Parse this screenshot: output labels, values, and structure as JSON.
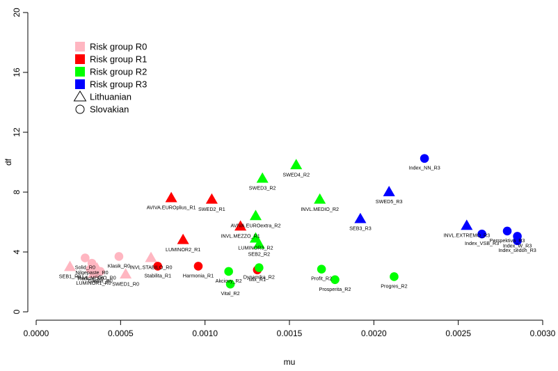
{
  "chart_data": {
    "type": "scatter",
    "xlabel": "mu",
    "ylabel": "df",
    "xlim": [
      0.0,
      0.003
    ],
    "ylim": [
      0,
      20
    ],
    "x_ticks": [
      "0.0000",
      "0.0005",
      "0.0010",
      "0.0015",
      "0.0020",
      "0.0025",
      "0.0030"
    ],
    "x_tick_values": [
      0.0,
      0.0005,
      0.001,
      0.0015,
      0.002,
      0.0025,
      0.003
    ],
    "y_ticks": [
      "0",
      "4",
      "8",
      "12",
      "16",
      "20"
    ],
    "y_tick_values": [
      0,
      4,
      8,
      12,
      16,
      20
    ],
    "grid": false,
    "legend_position": "top-left",
    "legend": [
      {
        "label": "Risk group R0",
        "symbol": "square",
        "color": "#ffb6c1"
      },
      {
        "label": "Risk group R1",
        "symbol": "square",
        "color": "#ff0000"
      },
      {
        "label": "Risk group R2",
        "symbol": "square",
        "color": "#00ff00"
      },
      {
        "label": "Risk group R3",
        "symbol": "square",
        "color": "#0000ff"
      },
      {
        "label": "Lithuanian",
        "symbol": "triangle-open",
        "color": "#000000"
      },
      {
        "label": "Slovakian",
        "symbol": "circle-open",
        "color": "#000000"
      }
    ],
    "group_colors": {
      "R0": "#ffb6c1",
      "R1": "#ff0000",
      "R2": "#00ff00",
      "R3": "#0000ff"
    },
    "points": [
      {
        "label": "SEB1_R0",
        "x": 0.0002,
        "y": 3.0,
        "group": "R0",
        "shape": "triangle",
        "label_side": "below"
      },
      {
        "label": "Tradicia_R0",
        "x": 0.00032,
        "y": 2.85,
        "group": "R0",
        "shape": "circle",
        "label_side": "below"
      },
      {
        "label": "Solid_R0",
        "x": 0.00029,
        "y": 3.6,
        "group": "R0",
        "shape": "circle",
        "label_side": "below"
      },
      {
        "label": "Nilgepaste_R0",
        "x": 0.00033,
        "y": 3.25,
        "group": "R0",
        "shape": "circle",
        "label_side": "below"
      },
      {
        "label": "INVL.MEDIO_R0",
        "x": 0.00036,
        "y": 2.9,
        "group": "R0",
        "shape": "triangle",
        "label_side": "below"
      },
      {
        "label": "LUMINOR1_R0",
        "x": 0.00034,
        "y": 2.55,
        "group": "R0",
        "shape": "triangle",
        "label_side": "below"
      },
      {
        "label": "Garant_R0",
        "x": 0.00038,
        "y": 2.7,
        "group": "R0",
        "shape": "circle",
        "label_side": "below"
      },
      {
        "label": "Klasik_R0",
        "x": 0.00049,
        "y": 3.7,
        "group": "R0",
        "shape": "circle",
        "label_side": "below"
      },
      {
        "label": "SWED1_R0",
        "x": 0.00053,
        "y": 2.5,
        "group": "R0",
        "shape": "triangle",
        "label_side": "below"
      },
      {
        "label": "INVL.STABILO_R0",
        "x": 0.00068,
        "y": 3.6,
        "group": "R0",
        "shape": "triangle",
        "label_side": "below"
      },
      {
        "label": "Stabilita_R1",
        "x": 0.00072,
        "y": 3.05,
        "group": "R1",
        "shape": "circle",
        "label_side": "below"
      },
      {
        "label": "AVIVA.EUROplius_R1",
        "x": 0.0008,
        "y": 7.6,
        "group": "R1",
        "shape": "triangle",
        "label_side": "below"
      },
      {
        "label": "LUMINOR2_R1",
        "x": 0.00087,
        "y": 4.8,
        "group": "R1",
        "shape": "triangle",
        "label_side": "below"
      },
      {
        "label": "Harmonia_R1",
        "x": 0.00096,
        "y": 3.05,
        "group": "R1",
        "shape": "circle",
        "label_side": "below"
      },
      {
        "label": "SWED2_R1",
        "x": 0.00104,
        "y": 7.5,
        "group": "R1",
        "shape": "triangle",
        "label_side": "below"
      },
      {
        "label": "INVL.MEZZO_R1",
        "x": 0.00121,
        "y": 5.7,
        "group": "R1",
        "shape": "triangle",
        "label_side": "below"
      },
      {
        "label": "Mix_R1",
        "x": 0.00131,
        "y": 2.8,
        "group": "R1",
        "shape": "circle",
        "label_side": "below"
      },
      {
        "label": "Akciovy_R2",
        "x": 0.00114,
        "y": 2.7,
        "group": "R2",
        "shape": "circle",
        "label_side": "below"
      },
      {
        "label": "Vital_R2",
        "x": 0.00115,
        "y": 1.85,
        "group": "R2",
        "shape": "circle",
        "label_side": "below"
      },
      {
        "label": "Dynamika_R2",
        "x": 0.00132,
        "y": 2.95,
        "group": "R2",
        "shape": "circle",
        "label_side": "below"
      },
      {
        "label": "AVIVA.EUROextra_R2",
        "x": 0.0013,
        "y": 6.4,
        "group": "R2",
        "shape": "triangle",
        "label_side": "below"
      },
      {
        "label": "LUMINOR3_R2",
        "x": 0.0013,
        "y": 4.9,
        "group": "R2",
        "shape": "triangle",
        "label_side": "below"
      },
      {
        "label": "SEB2_R2",
        "x": 0.00132,
        "y": 4.5,
        "group": "R2",
        "shape": "triangle",
        "label_side": "below"
      },
      {
        "label": "SWED3_R2",
        "x": 0.00134,
        "y": 8.9,
        "group": "R2",
        "shape": "triangle",
        "label_side": "below"
      },
      {
        "label": "SWED4_R2",
        "x": 0.00154,
        "y": 9.8,
        "group": "R2",
        "shape": "triangle",
        "label_side": "below"
      },
      {
        "label": "INVL.MEDIO_R2",
        "x": 0.00168,
        "y": 7.5,
        "group": "R2",
        "shape": "triangle",
        "label_side": "below"
      },
      {
        "label": "Profit_R2",
        "x": 0.00169,
        "y": 2.85,
        "group": "R2",
        "shape": "circle",
        "label_side": "below"
      },
      {
        "label": "Prosperita_R2",
        "x": 0.00177,
        "y": 2.15,
        "group": "R2",
        "shape": "circle",
        "label_side": "below"
      },
      {
        "label": "Progres_R2",
        "x": 0.00212,
        "y": 2.35,
        "group": "R2",
        "shape": "circle",
        "label_side": "below"
      },
      {
        "label": "SEB3_R3",
        "x": 0.00192,
        "y": 6.2,
        "group": "R3",
        "shape": "triangle",
        "label_side": "below"
      },
      {
        "label": "SWED5_R3",
        "x": 0.00209,
        "y": 8.0,
        "group": "R3",
        "shape": "triangle",
        "label_side": "below"
      },
      {
        "label": "Index_NN_R3",
        "x": 0.0023,
        "y": 10.25,
        "group": "R3",
        "shape": "circle",
        "label_side": "below"
      },
      {
        "label": "INVL.EXTREMO_R3",
        "x": 0.00255,
        "y": 5.75,
        "group": "R3",
        "shape": "triangle",
        "label_side": "below"
      },
      {
        "label": "Index_VSB_R3",
        "x": 0.00264,
        "y": 5.2,
        "group": "R3",
        "shape": "circle",
        "label_side": "below"
      },
      {
        "label": "Perspektiva_R3",
        "x": 0.00279,
        "y": 5.4,
        "group": "R3",
        "shape": "circle",
        "label_side": "below"
      },
      {
        "label": "Index_W_R3",
        "x": 0.00285,
        "y": 5.05,
        "group": "R3",
        "shape": "circle",
        "label_side": "below"
      },
      {
        "label": "Index_sedoh_R3",
        "x": 0.00285,
        "y": 4.75,
        "group": "R3",
        "shape": "circle",
        "label_side": "below"
      }
    ]
  }
}
